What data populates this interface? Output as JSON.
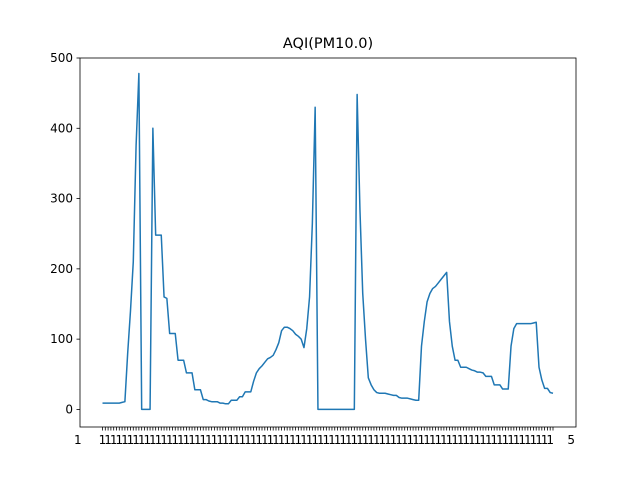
{
  "chart_data": {
    "type": "line",
    "title": "AQI(PM10.0)",
    "xlabel": "",
    "ylabel": "",
    "ylim": [
      -25,
      500
    ],
    "yticks": [
      0,
      100,
      200,
      300,
      400,
      500
    ],
    "grid": false,
    "legend": "none",
    "line_color": "#1f77b4",
    "x_tick_labels_overlapping": true,
    "x_tick_label_fragments": [
      "1",
      "5"
    ],
    "series": [
      {
        "values": [
          9,
          9,
          9,
          9,
          9,
          9,
          9,
          10,
          11,
          80,
          140,
          210,
          375,
          478,
          0,
          0,
          0,
          0,
          400,
          248,
          248,
          248,
          160,
          158,
          108,
          108,
          108,
          70,
          70,
          70,
          52,
          52,
          52,
          28,
          28,
          28,
          14,
          14,
          12,
          11,
          11,
          11,
          9,
          9,
          8,
          8,
          13,
          13,
          13,
          18,
          18,
          25,
          25,
          25,
          40,
          52,
          58,
          62,
          67,
          72,
          74,
          77,
          85,
          95,
          112,
          117,
          117,
          115,
          112,
          107,
          104,
          100,
          88,
          115,
          160,
          265,
          430,
          0,
          0,
          0,
          0,
          0,
          0,
          0,
          0,
          0,
          0,
          0,
          0,
          0,
          0,
          448,
          285,
          165,
          100,
          45,
          35,
          28,
          24,
          23,
          23,
          23,
          22,
          21,
          20,
          20,
          17,
          16,
          16,
          16,
          15,
          14,
          13,
          13,
          90,
          125,
          153,
          165,
          172,
          175,
          180,
          185,
          190,
          195,
          125,
          90,
          70,
          70,
          60,
          60,
          60,
          58,
          56,
          55,
          53,
          53,
          52,
          47,
          47,
          47,
          35,
          35,
          35,
          29,
          29,
          29,
          90,
          115,
          122,
          122,
          122,
          122,
          122,
          122,
          123,
          124,
          60,
          42,
          30,
          30,
          24,
          23
        ]
      }
    ]
  }
}
